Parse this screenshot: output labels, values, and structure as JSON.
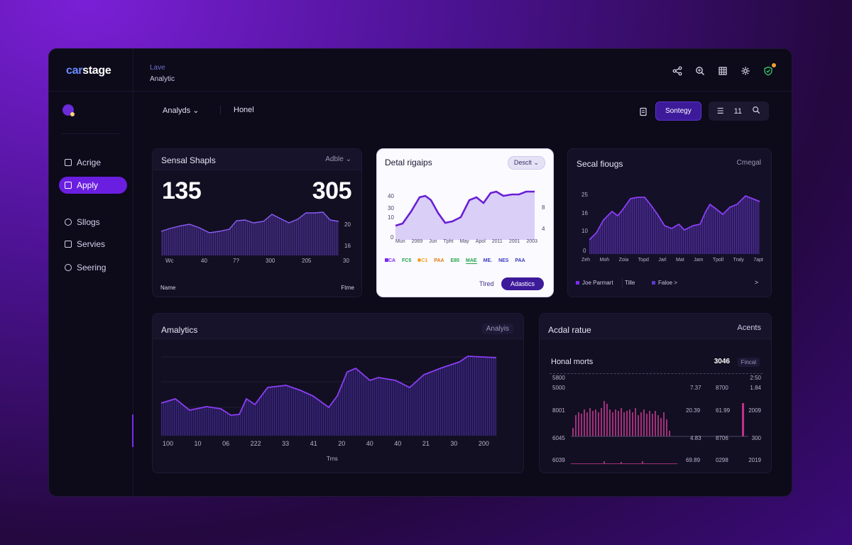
{
  "app": {
    "logo_a": "car",
    "logo_b": "stage",
    "ctx_top": "Lave",
    "ctx_bottom": "Analytic"
  },
  "toolbar": {
    "menu_label": "Analyds",
    "tab_label": "Honel",
    "primary_button": "Sontegy",
    "count": "11"
  },
  "sidebar": {
    "items": [
      {
        "label": "Acrige",
        "icon": "tag-icon"
      },
      {
        "label": "Apply",
        "icon": "square-icon",
        "active": true
      },
      {
        "label": "Sllogs",
        "icon": "pin-icon"
      },
      {
        "label": "Servies",
        "icon": "doc-icon"
      },
      {
        "label": "Seering",
        "icon": "gear-icon"
      }
    ]
  },
  "card1": {
    "title": "Sensal Shapls",
    "action": "Adble",
    "value_left": "135",
    "value_right": "305",
    "x_ticks": [
      "Wc",
      "40",
      "7?",
      "300",
      "205",
      "30"
    ],
    "y_ticks": [
      "20",
      "16"
    ],
    "footer_left": "Name",
    "footer_right": "Ftrne"
  },
  "card2": {
    "title": "Detal rigaips",
    "pill": "Desclt",
    "y_ticks_left": [
      "40",
      "30",
      "10",
      "0"
    ],
    "y_ticks_right": [
      "8",
      "4"
    ],
    "x_ticks": [
      "Mun",
      "2069",
      "Jun",
      "Tpht",
      "May",
      "Apol",
      "2011",
      "2001",
      "2003"
    ],
    "legend": [
      {
        "label": "CA",
        "color": "#7b2cf0",
        "swatch": true
      },
      {
        "label": "FC5",
        "color": "#22a34a"
      },
      {
        "label": "C1",
        "color": "#f0a020",
        "swatch": true
      },
      {
        "label": "PAA",
        "color": "#e07a10"
      },
      {
        "label": "E85",
        "color": "#22a34a"
      },
      {
        "label": "MAE",
        "color": "#22a34a"
      },
      {
        "label": "ME.",
        "color": "#3a3ac0"
      },
      {
        "label": "NES",
        "color": "#3a3ac0"
      },
      {
        "label": "PAA",
        "color": "#3a3ac0"
      }
    ],
    "link": "Tlred",
    "button": "Adastics"
  },
  "card3": {
    "title": "Secal fiougs",
    "action": "Cmegal",
    "y_ticks": [
      "25",
      "16",
      "10",
      "0"
    ],
    "x_ticks": [
      "Zeh",
      "Moh",
      "Zoia",
      "Topd",
      "Jarl",
      "Mat",
      "Jam",
      "Tpoll",
      "Traly",
      "7apt"
    ],
    "footer": [
      "Joe Parmart",
      "Tille",
      "Faloe >",
      ">"
    ]
  },
  "card4": {
    "title": "Amalytics",
    "action": "Analyis",
    "x_ticks": [
      "100",
      "10",
      "06",
      "222",
      "33",
      "41",
      "20",
      "40",
      "40",
      "21",
      "30",
      "200"
    ],
    "x_label": "Trns"
  },
  "card5": {
    "title": "Acdal ratue",
    "action": "Acents",
    "subtitle": "Honal morts",
    "sub_value": "3046",
    "sub_action": "Fincal",
    "rows": [
      {
        "label": "5800",
        "c1": "",
        "c2": "",
        "c3": "2:50"
      },
      {
        "label": "5000",
        "c1": "7.37",
        "c2": "8700",
        "c3": "1.84"
      },
      {
        "label": "8001",
        "c1": "20.39",
        "c2": "61.99",
        "c3": "2009"
      },
      {
        "label": "6045",
        "c1": "4.83",
        "c2": "8706",
        "c3": "300"
      },
      {
        "label": "6039",
        "c1": "69.89",
        "c2": "0298",
        "c3": "2019"
      }
    ]
  },
  "colors": {
    "accent": "#7b2cf0",
    "panel": "#120f22",
    "window": "#0d0a1a"
  }
}
